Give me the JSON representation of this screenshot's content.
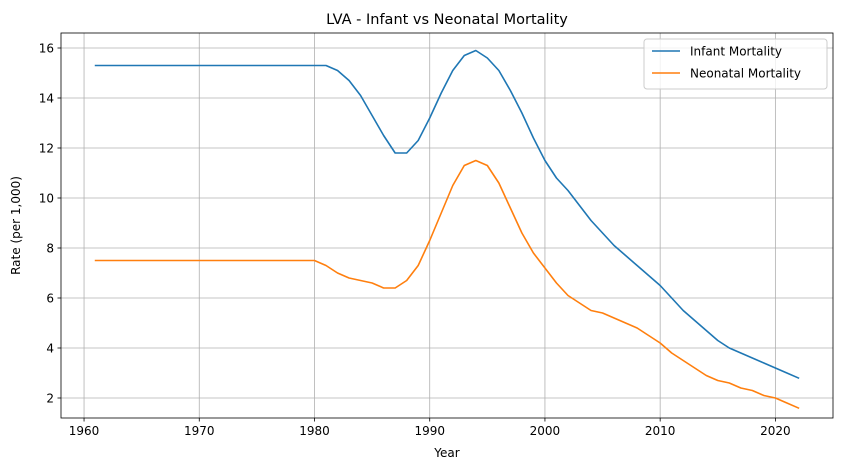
{
  "chart_data": {
    "type": "line",
    "title": "LVA - Infant vs Neonatal Mortality",
    "xlabel": "Year",
    "ylabel": "Rate (per 1,000)",
    "xlim": [
      1958,
      2025
    ],
    "ylim": [
      1.2,
      16.6
    ],
    "x_ticks": [
      1960,
      1970,
      1980,
      1990,
      2000,
      2010,
      2020
    ],
    "y_ticks": [
      2,
      4,
      6,
      8,
      10,
      12,
      14,
      16
    ],
    "grid": true,
    "legend_position": "top-right",
    "x": [
      1961,
      1962,
      1963,
      1964,
      1965,
      1966,
      1967,
      1968,
      1969,
      1970,
      1971,
      1972,
      1973,
      1974,
      1975,
      1976,
      1977,
      1978,
      1979,
      1980,
      1981,
      1982,
      1983,
      1984,
      1985,
      1986,
      1987,
      1988,
      1989,
      1990,
      1991,
      1992,
      1993,
      1994,
      1995,
      1996,
      1997,
      1998,
      1999,
      2000,
      2001,
      2002,
      2003,
      2004,
      2005,
      2006,
      2007,
      2008,
      2009,
      2010,
      2011,
      2012,
      2013,
      2014,
      2015,
      2016,
      2017,
      2018,
      2019,
      2020,
      2021,
      2022
    ],
    "series": [
      {
        "name": "Infant Mortality",
        "color": "#1f77b4",
        "values": [
          15.3,
          15.3,
          15.3,
          15.3,
          15.3,
          15.3,
          15.3,
          15.3,
          15.3,
          15.3,
          15.3,
          15.3,
          15.3,
          15.3,
          15.3,
          15.3,
          15.3,
          15.3,
          15.3,
          15.3,
          15.3,
          15.1,
          14.7,
          14.1,
          13.3,
          12.5,
          11.8,
          11.8,
          12.3,
          13.2,
          14.2,
          15.1,
          15.7,
          15.9,
          15.6,
          15.1,
          14.3,
          13.4,
          12.4,
          11.5,
          10.8,
          10.3,
          9.7,
          9.1,
          8.6,
          8.1,
          7.7,
          7.3,
          6.9,
          6.5,
          6.0,
          5.5,
          5.1,
          4.7,
          4.3,
          4.0,
          3.8,
          3.6,
          3.4,
          3.2,
          3.0,
          2.8
        ]
      },
      {
        "name": "Neonatal Mortality",
        "color": "#ff7f0e",
        "values": [
          7.5,
          7.5,
          7.5,
          7.5,
          7.5,
          7.5,
          7.5,
          7.5,
          7.5,
          7.5,
          7.5,
          7.5,
          7.5,
          7.5,
          7.5,
          7.5,
          7.5,
          7.5,
          7.5,
          7.5,
          7.3,
          7.0,
          6.8,
          6.7,
          6.6,
          6.4,
          6.4,
          6.7,
          7.3,
          8.3,
          9.4,
          10.5,
          11.3,
          11.5,
          11.3,
          10.6,
          9.6,
          8.6,
          7.8,
          7.2,
          6.6,
          6.1,
          5.8,
          5.5,
          5.4,
          5.2,
          5.0,
          4.8,
          4.5,
          4.2,
          3.8,
          3.5,
          3.2,
          2.9,
          2.7,
          2.6,
          2.4,
          2.3,
          2.1,
          2.0,
          1.8,
          1.6
        ]
      }
    ]
  }
}
